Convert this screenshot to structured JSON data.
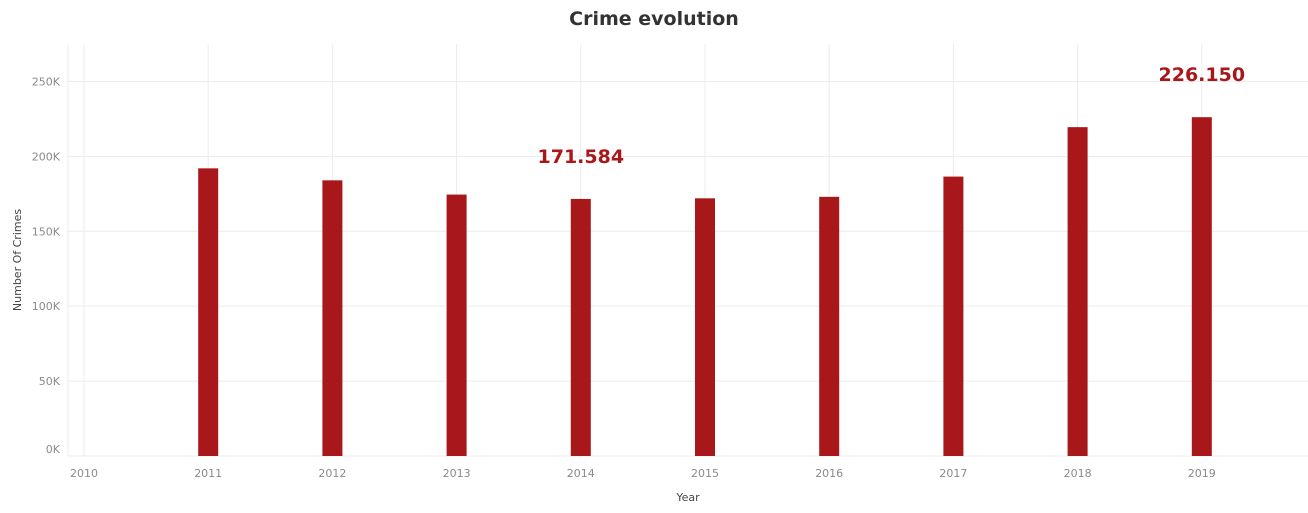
{
  "chart_data": {
    "type": "bar",
    "title": "Crime evolution",
    "xlabel": "Year",
    "ylabel": "Number Of Crimes",
    "x": [
      2011,
      2012,
      2013,
      2014,
      2015,
      2016,
      2017,
      2018,
      2019
    ],
    "values": [
      192000,
      184000,
      174500,
      171584,
      172000,
      173000,
      186500,
      219500,
      226150
    ],
    "xlim": [
      2010,
      2020
    ],
    "xticks": [
      "2010",
      "2011",
      "2012",
      "2013",
      "2014",
      "2015",
      "2016",
      "2017",
      "2018",
      "2019",
      "2020"
    ],
    "ylim": [
      0,
      275000
    ],
    "yticks": [
      {
        "value": 0,
        "label": "0K"
      },
      {
        "value": 50000,
        "label": "50K"
      },
      {
        "value": 100000,
        "label": "100K"
      },
      {
        "value": 150000,
        "label": "150K"
      },
      {
        "value": 200000,
        "label": "200K"
      },
      {
        "value": 250000,
        "label": "250K"
      }
    ],
    "annotations": [
      {
        "x": 2014,
        "value": 171584,
        "label": "171.584"
      },
      {
        "x": 2019,
        "value": 226150,
        "label": "226.150"
      }
    ],
    "bar_color": "#a8171a",
    "label_color": "#a8171a",
    "grid": true,
    "legend": "none"
  }
}
